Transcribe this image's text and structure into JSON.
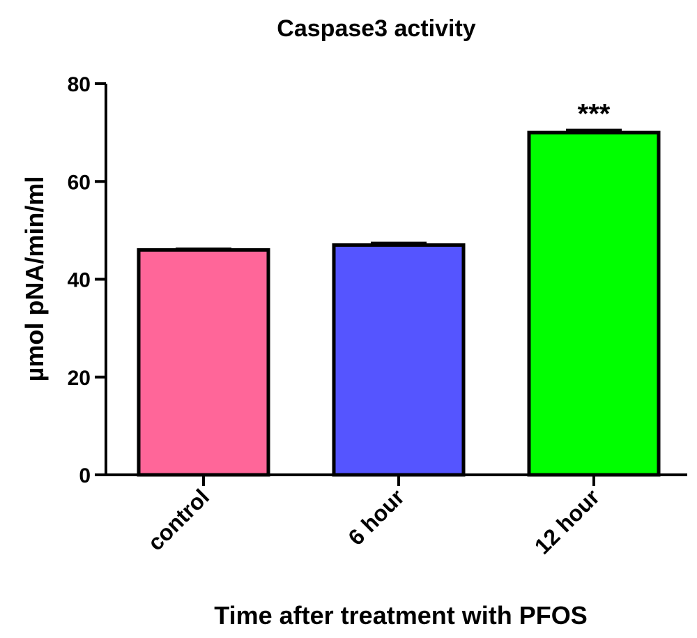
{
  "chart_data": {
    "type": "bar",
    "title": "Caspase3 activity",
    "xlabel": "Time after treatment with PFOS",
    "ylabel": "µmol pNA/min/ml",
    "categories": [
      "control",
      "6 hour",
      "12 hour"
    ],
    "values": [
      46,
      47,
      70
    ],
    "errors": [
      0.2,
      0.4,
      0.5
    ],
    "annotations": [
      "",
      "",
      "***"
    ],
    "colors": [
      "#ff6699",
      "#5555ff",
      "#00ff00"
    ],
    "ylim": [
      0,
      80
    ],
    "yticks": [
      "0",
      "20",
      "40",
      "60",
      "80"
    ],
    "grid": false,
    "legend": "none"
  }
}
